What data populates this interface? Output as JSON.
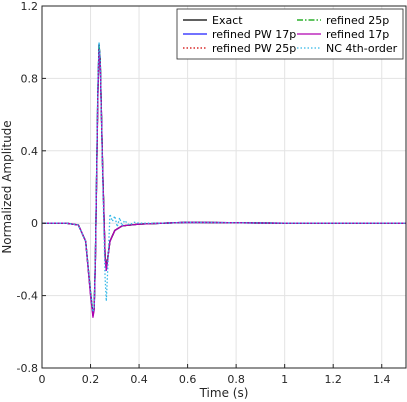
{
  "chart_data": {
    "type": "line",
    "title": "",
    "xlabel": "Time (s)",
    "ylabel": "Normalized Amplitude",
    "xlim": [
      0,
      1.5
    ],
    "ylim": [
      -0.8,
      1.2
    ],
    "x_ticks": [
      0,
      0.2,
      0.4,
      0.6,
      0.8,
      1,
      1.2,
      1.4
    ],
    "x_tick_labels": [
      "0",
      "0.2",
      "0.4",
      "0.6",
      "0.8",
      "1",
      "1.2",
      "1.4"
    ],
    "y_ticks": [
      -0.8,
      -0.4,
      0,
      0.4,
      0.8,
      1.2
    ],
    "y_tick_labels": [
      "-0.8",
      "-0.4",
      "0",
      "0.4",
      "0.8",
      "1.2"
    ],
    "grid": true,
    "legend_position": "top-right",
    "legend_columns": 2,
    "series": [
      {
        "name": "Exact",
        "color": "#000000",
        "dash": "solid",
        "x": [
          0,
          0.1,
          0.15,
          0.18,
          0.2,
          0.21,
          0.215,
          0.22,
          0.23,
          0.235,
          0.24,
          0.25,
          0.26,
          0.265,
          0.27,
          0.28,
          0.3,
          0.33,
          0.4,
          0.5,
          0.6,
          1.0,
          1.5
        ],
        "y": [
          0,
          0,
          -0.01,
          -0.1,
          -0.38,
          -0.5,
          -0.47,
          -0.2,
          0.7,
          0.98,
          0.9,
          0.3,
          -0.18,
          -0.25,
          -0.2,
          -0.1,
          -0.04,
          -0.015,
          -0.005,
          0,
          0.005,
          0,
          0
        ]
      },
      {
        "name": "refined PW 17p",
        "color": "#1f1fff",
        "dash": "solid",
        "x": [
          0,
          0.1,
          0.15,
          0.18,
          0.2,
          0.21,
          0.215,
          0.22,
          0.23,
          0.235,
          0.24,
          0.25,
          0.26,
          0.265,
          0.27,
          0.28,
          0.3,
          0.33,
          0.4,
          0.5,
          0.6,
          1.0,
          1.5
        ],
        "y": [
          0,
          0,
          -0.01,
          -0.1,
          -0.39,
          -0.51,
          -0.47,
          -0.2,
          0.72,
          0.99,
          0.9,
          0.3,
          -0.18,
          -0.26,
          -0.2,
          -0.1,
          -0.04,
          -0.015,
          -0.005,
          0,
          0.005,
          0,
          0
        ]
      },
      {
        "name": "refined PW 25p",
        "color": "#d00000",
        "dash": "dotted",
        "x": [
          0,
          0.1,
          0.15,
          0.18,
          0.2,
          0.21,
          0.215,
          0.22,
          0.23,
          0.235,
          0.24,
          0.25,
          0.26,
          0.265,
          0.27,
          0.28,
          0.3,
          0.33,
          0.4,
          0.5,
          0.6,
          1.0,
          1.5
        ],
        "y": [
          0,
          0,
          -0.01,
          -0.1,
          -0.38,
          -0.5,
          -0.47,
          -0.2,
          0.7,
          0.98,
          0.9,
          0.3,
          -0.18,
          -0.25,
          -0.2,
          -0.1,
          -0.04,
          -0.015,
          -0.005,
          0,
          0.005,
          0,
          0
        ]
      },
      {
        "name": "refined 25p",
        "color": "#00a000",
        "dash": "dashdot",
        "x": [
          0,
          0.1,
          0.15,
          0.18,
          0.2,
          0.21,
          0.215,
          0.22,
          0.23,
          0.235,
          0.24,
          0.25,
          0.26,
          0.265,
          0.27,
          0.28,
          0.3,
          0.33,
          0.4,
          0.5,
          0.6,
          1.0,
          1.5
        ],
        "y": [
          0,
          0,
          -0.01,
          -0.1,
          -0.39,
          -0.51,
          -0.47,
          -0.2,
          0.71,
          0.99,
          0.9,
          0.3,
          -0.18,
          -0.25,
          -0.2,
          -0.1,
          -0.04,
          -0.015,
          -0.005,
          0,
          0.005,
          0,
          0
        ]
      },
      {
        "name": "refined 17p",
        "color": "#b000b0",
        "dash": "solid",
        "x": [
          0,
          0.1,
          0.15,
          0.18,
          0.2,
          0.21,
          0.215,
          0.22,
          0.23,
          0.235,
          0.24,
          0.25,
          0.26,
          0.265,
          0.27,
          0.28,
          0.3,
          0.33,
          0.4,
          0.5,
          0.6,
          1.0,
          1.5
        ],
        "y": [
          0,
          0,
          -0.01,
          -0.1,
          -0.4,
          -0.52,
          -0.48,
          -0.21,
          0.68,
          0.96,
          0.88,
          0.29,
          -0.19,
          -0.26,
          -0.21,
          -0.1,
          -0.04,
          -0.015,
          -0.005,
          0,
          0.005,
          0,
          0
        ]
      },
      {
        "name": "NC 4th-order",
        "color": "#33b8e8",
        "dash": "dotted",
        "x": [
          0,
          0.1,
          0.15,
          0.18,
          0.2,
          0.21,
          0.215,
          0.22,
          0.23,
          0.235,
          0.24,
          0.25,
          0.26,
          0.265,
          0.27,
          0.28,
          0.29,
          0.3,
          0.31,
          0.32,
          0.33,
          0.34,
          0.36,
          0.38,
          0.4,
          0.5,
          0.6,
          1.0,
          1.5
        ],
        "y": [
          0,
          0,
          -0.01,
          -0.1,
          -0.37,
          -0.49,
          -0.46,
          -0.18,
          0.75,
          1.0,
          0.9,
          0.25,
          -0.3,
          -0.43,
          -0.28,
          0.05,
          0.01,
          0.04,
          -0.02,
          0.03,
          -0.015,
          0.015,
          -0.01,
          0.005,
          0,
          0,
          0.005,
          0,
          0
        ]
      }
    ]
  }
}
